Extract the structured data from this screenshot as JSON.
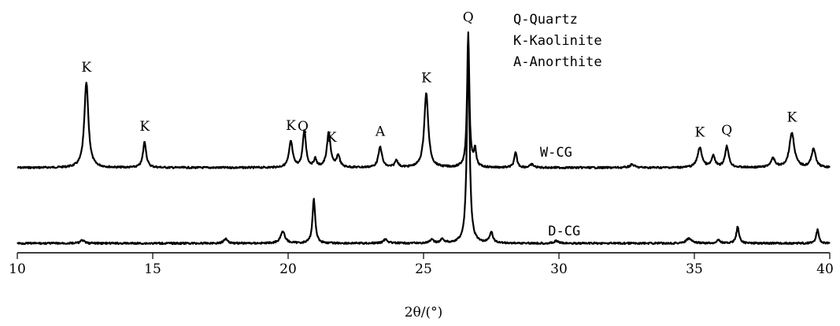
{
  "chart_data": {
    "type": "line",
    "xlabel": "2θ/(°)",
    "ylabel": "",
    "xlim": [
      10,
      40
    ],
    "x_ticks": [
      10,
      15,
      20,
      25,
      30,
      35,
      40
    ],
    "x_tick_labels": [
      "10",
      "15",
      "20",
      "25",
      "30",
      "35",
      "40"
    ],
    "grid": false,
    "legend": {
      "placement": "top-right",
      "entries": [
        "Q-Quartz",
        "K-Kaolinite",
        "A-Anorthite"
      ]
    },
    "series": [
      {
        "name": "W-CG",
        "baseline": 0,
        "peaks": [
          {
            "x": 12.55,
            "y": 108,
            "w": 0.09
          },
          {
            "x": 14.7,
            "y": 33,
            "w": 0.07
          },
          {
            "x": 20.1,
            "y": 33,
            "w": 0.08
          },
          {
            "x": 20.6,
            "y": 47,
            "w": 0.07
          },
          {
            "x": 21.0,
            "y": 10,
            "w": 0.06
          },
          {
            "x": 21.5,
            "y": 44,
            "w": 0.08
          },
          {
            "x": 21.85,
            "y": 15,
            "w": 0.07
          },
          {
            "x": 23.4,
            "y": 26,
            "w": 0.08
          },
          {
            "x": 24.0,
            "y": 9,
            "w": 0.07
          },
          {
            "x": 25.1,
            "y": 94,
            "w": 0.09
          },
          {
            "x": 26.65,
            "y": 170,
            "w": 0.05
          },
          {
            "x": 26.9,
            "y": 22,
            "w": 0.05
          },
          {
            "x": 28.4,
            "y": 19,
            "w": 0.06
          },
          {
            "x": 29.0,
            "y": 4,
            "w": 0.08
          },
          {
            "x": 32.7,
            "y": 4,
            "w": 0.1
          },
          {
            "x": 35.2,
            "y": 25,
            "w": 0.1
          },
          {
            "x": 35.7,
            "y": 14,
            "w": 0.08
          },
          {
            "x": 36.2,
            "y": 27,
            "w": 0.08
          },
          {
            "x": 37.9,
            "y": 11,
            "w": 0.1
          },
          {
            "x": 38.6,
            "y": 44,
            "w": 0.11
          },
          {
            "x": 39.4,
            "y": 24,
            "w": 0.09
          }
        ],
        "annotations": [
          {
            "x": 12.55,
            "text": "K"
          },
          {
            "x": 14.7,
            "text": "K"
          },
          {
            "x": 20.1,
            "text": "K"
          },
          {
            "x": 20.55,
            "text": "Q"
          },
          {
            "x": 21.6,
            "text": "K"
          },
          {
            "x": 23.4,
            "text": "A"
          },
          {
            "x": 25.1,
            "text": "K"
          },
          {
            "x": 26.65,
            "text": "Q"
          },
          {
            "x": 35.2,
            "text": "K"
          },
          {
            "x": 36.2,
            "text": "Q"
          },
          {
            "x": 38.6,
            "text": "K"
          }
        ]
      },
      {
        "name": "D-CG",
        "baseline": 0,
        "peaks": [
          {
            "x": 12.4,
            "y": 4,
            "w": 0.08
          },
          {
            "x": 17.7,
            "y": 6,
            "w": 0.08
          },
          {
            "x": 19.8,
            "y": 15,
            "w": 0.1
          },
          {
            "x": 20.95,
            "y": 56,
            "w": 0.06
          },
          {
            "x": 23.6,
            "y": 5,
            "w": 0.1
          },
          {
            "x": 25.3,
            "y": 4,
            "w": 0.08
          },
          {
            "x": 25.7,
            "y": 5,
            "w": 0.08
          },
          {
            "x": 26.65,
            "y": 240,
            "w": 0.06
          },
          {
            "x": 27.5,
            "y": 14,
            "w": 0.07
          },
          {
            "x": 29.9,
            "y": 3,
            "w": 0.08
          },
          {
            "x": 34.8,
            "y": 6,
            "w": 0.12
          },
          {
            "x": 35.9,
            "y": 4,
            "w": 0.08
          },
          {
            "x": 36.6,
            "y": 21,
            "w": 0.06
          },
          {
            "x": 39.55,
            "y": 17,
            "w": 0.06
          }
        ],
        "annotations": []
      }
    ]
  }
}
